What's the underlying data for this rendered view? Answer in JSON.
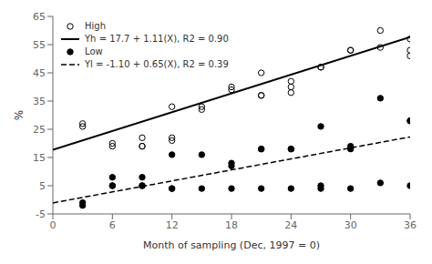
{
  "chart_data": {
    "type": "scatter",
    "xlabel": "Month of sampling (Dec, 1997 = 0)",
    "ylabel": "%",
    "xlim": [
      0,
      36
    ],
    "ylim": [
      -5,
      65
    ],
    "xticks": [
      0,
      6,
      12,
      18,
      24,
      30,
      36
    ],
    "yticks": [
      -5,
      5,
      15,
      25,
      35,
      45,
      55,
      65
    ],
    "legend": "upper left",
    "series": [
      {
        "name": "High",
        "type": "scatter",
        "marker": "open_circle",
        "color": "black",
        "x": [
          3,
          3,
          6,
          6,
          9,
          9,
          9,
          12,
          12,
          12,
          15,
          15,
          18,
          18,
          21,
          21,
          21,
          24,
          24,
          24,
          27,
          27,
          30,
          30,
          33,
          33,
          36,
          36,
          36
        ],
        "values": [
          27,
          26,
          20,
          19,
          19,
          19,
          22,
          33,
          21,
          22,
          32,
          33,
          40,
          39,
          37,
          37,
          45,
          42,
          40,
          38,
          47,
          47,
          53,
          53,
          60,
          54,
          57,
          53,
          51
        ]
      },
      {
        "name": "Yh = 17.7 + 1.11(X), R2 = 0.90",
        "type": "line",
        "line_style": "solid",
        "color": "black",
        "x": [
          0,
          36
        ],
        "values": [
          17.7,
          57.66
        ]
      },
      {
        "name": "Low",
        "type": "scatter",
        "marker": "circle",
        "color": "black",
        "x": [
          3,
          3,
          6,
          6,
          6,
          9,
          9,
          9,
          12,
          12,
          12,
          15,
          15,
          18,
          18,
          18,
          21,
          21,
          21,
          24,
          24,
          24,
          27,
          27,
          27,
          30,
          30,
          30,
          33,
          33,
          36,
          36,
          36
        ],
        "values": [
          -1,
          -2,
          8,
          5,
          5,
          8,
          5,
          5,
          16,
          4,
          4,
          16,
          4,
          13,
          12,
          4,
          18,
          18,
          4,
          18,
          18,
          4,
          26,
          4,
          5,
          19,
          18,
          4,
          36,
          6,
          28,
          28,
          5
        ]
      },
      {
        "name": "Yl = -1.10 + 0.65(X), R2 = 0.39",
        "type": "line",
        "line_style": "dashed",
        "color": "black",
        "x": [
          0,
          36
        ],
        "values": [
          -1.1,
          22.3
        ]
      }
    ]
  }
}
